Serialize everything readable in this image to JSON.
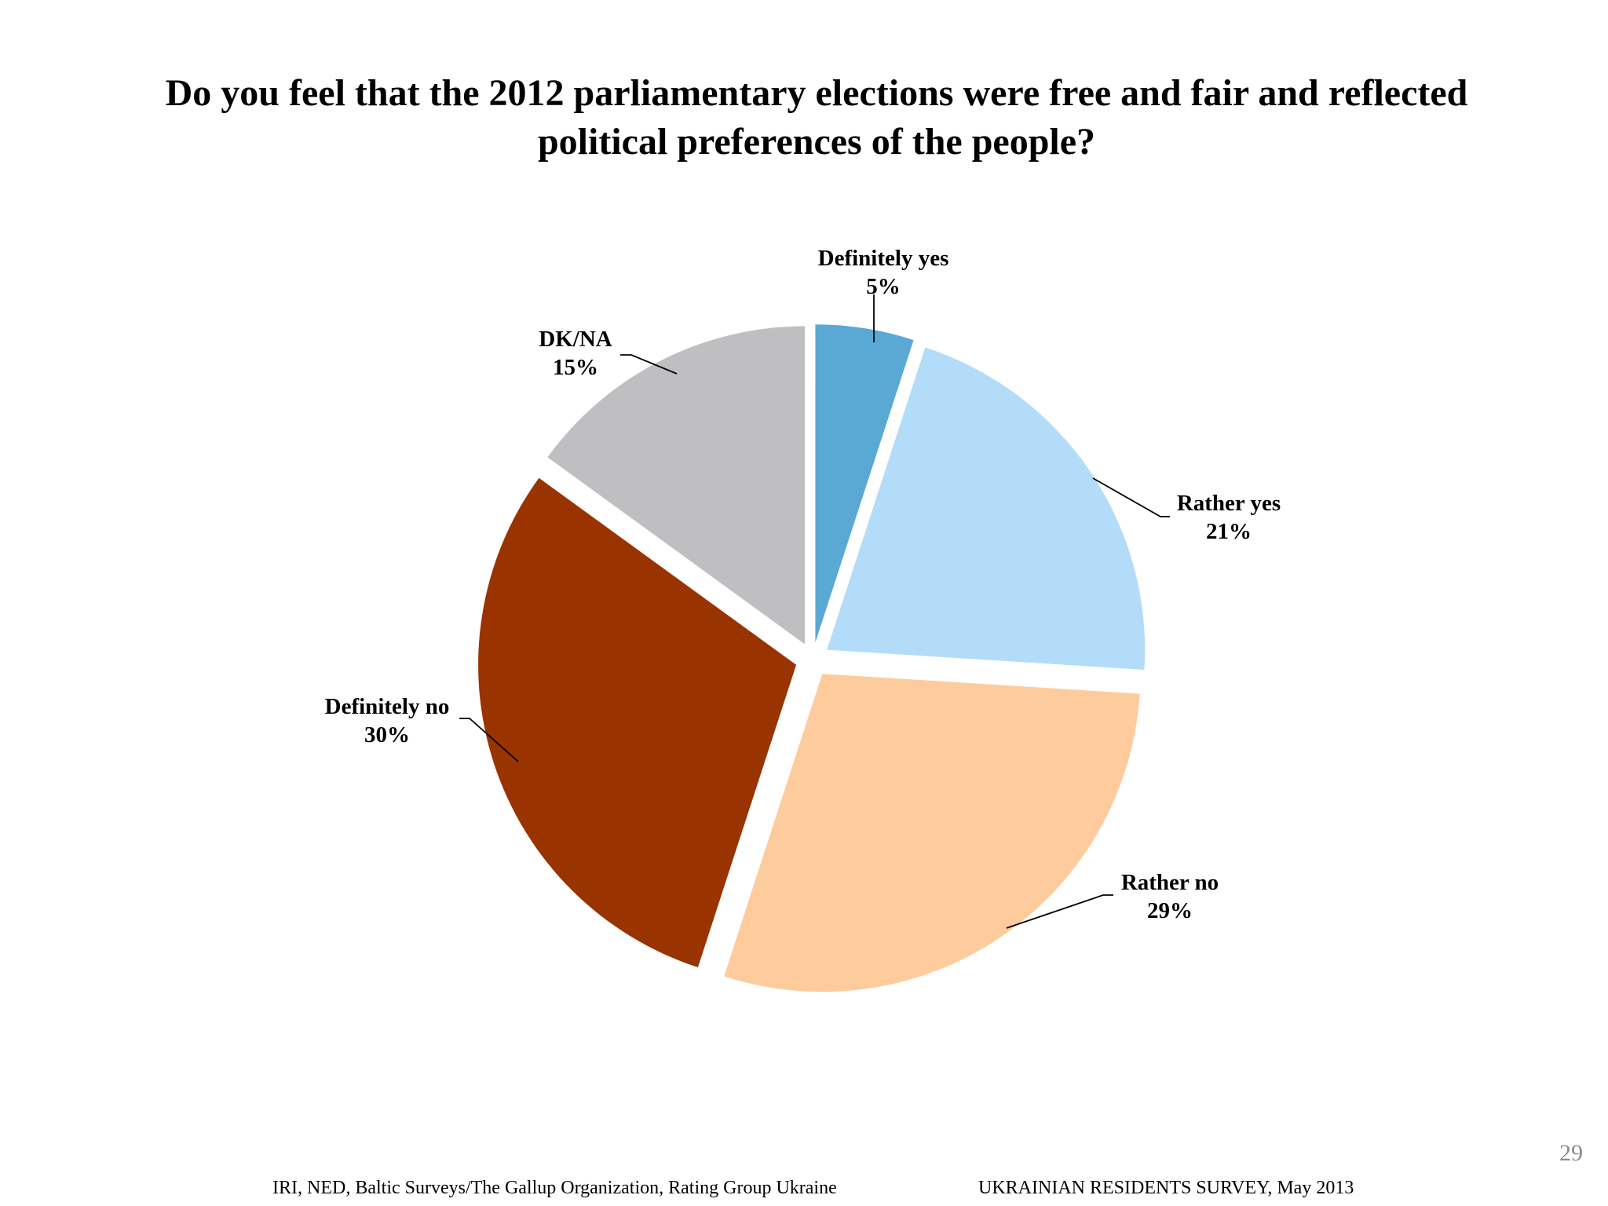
{
  "title_line1": "Do you feel that the 2012 parliamentary elections were free and fair and reflected",
  "title_line2": "political preferences of the people?",
  "page_number": "29",
  "footer_left": "IRI, NED,  Baltic Surveys/The Gallup Organization, Rating Group Ukraine",
  "footer_right": "UKRAINIAN RESIDENTS SURVEY, May  2013",
  "chart_data": {
    "type": "pie",
    "title": "Do you feel that the 2012 parliamentary elections were free and fair and reflected political preferences of the people?",
    "categories": [
      "Definitely yes",
      "Rather yes",
      "Rather no",
      "Definitely no",
      "DK/NA"
    ],
    "values": [
      5,
      21,
      29,
      30,
      15
    ],
    "value_labels": [
      "5%",
      "21%",
      "29%",
      "30%",
      "15%"
    ],
    "colors": [
      "#5aa9d4",
      "#b3dcf9",
      "#fecb9c",
      "#993300",
      "#bfbfc1"
    ],
    "start": "12 o'clock, clockwise",
    "exploded": true
  }
}
